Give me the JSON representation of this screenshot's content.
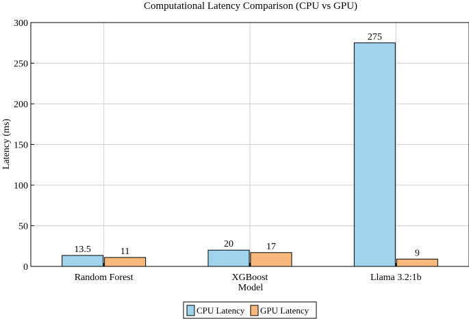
{
  "chart_data": {
    "type": "bar",
    "title": "Computational Latency Comparison (CPU vs GPU)",
    "xlabel": "Model",
    "ylabel": "Latency (ms)",
    "categories": [
      "Random Forest",
      "XGBoost",
      "Llama 3.2:1b"
    ],
    "series": [
      {
        "name": "CPU Latency",
        "values": [
          13.5,
          20,
          275
        ],
        "color": "#9fd4ec",
        "labels": [
          "13.5",
          "20",
          "275"
        ]
      },
      {
        "name": "GPU Latency",
        "values": [
          11,
          17,
          9
        ],
        "color": "#f9b97d",
        "labels": [
          "11",
          "17",
          "9"
        ]
      }
    ],
    "ylim": [
      0,
      300
    ],
    "yticks": [
      "0",
      "50",
      "100",
      "150",
      "200",
      "250",
      "300"
    ],
    "grid": true,
    "legend_position": "bottom-center"
  }
}
